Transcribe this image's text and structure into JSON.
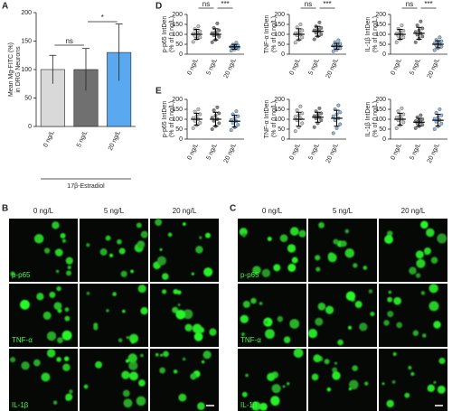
{
  "panel_labels": [
    "A",
    "B",
    "C",
    "D",
    "E"
  ],
  "chart_data": [
    {
      "type": "bar",
      "ylabel": [
        "Mean Mg-FITC (%)",
        "in DRG Neurons"
      ],
      "xlabel": "17β-Estradiol",
      "categories": [
        "0 ng/L",
        "5 ng/L",
        "20 ng/L"
      ],
      "values": [
        100,
        100,
        130
      ],
      "errors": [
        25,
        37,
        50
      ],
      "colors": [
        "#d9d9d9",
        "#707070",
        "#5aa9f0"
      ],
      "ylim": [
        0,
        200
      ],
      "yticks": [
        0,
        50,
        100,
        150,
        200
      ],
      "annotations": [
        "ns",
        "*"
      ]
    },
    {
      "type": "dot",
      "ylabel": [
        "p-p65 IntDen",
        "(% of 0 ng/L)"
      ],
      "categories": [
        "0 ng/L",
        "5 ng/L",
        "20 ng/L"
      ],
      "colors": [
        "#b8b8b8",
        "#666666",
        "#6fa8dc"
      ],
      "ylim": [
        0,
        200
      ],
      "yticks": [
        0,
        50,
        100,
        150,
        200
      ],
      "annotations": [
        "ns",
        "***"
      ],
      "groups": [
        {
          "values": [
            62,
            78,
            85,
            92,
            97,
            103,
            108,
            115,
            126,
            140
          ],
          "mean": 100,
          "sd": 25
        },
        {
          "values": [
            60,
            72,
            88,
            95,
            100,
            106,
            112,
            120,
            132,
            155
          ],
          "mean": 100,
          "sd": 28
        },
        {
          "values": [
            18,
            24,
            28,
            32,
            35,
            38,
            40,
            44,
            48,
            58
          ],
          "mean": 37,
          "sd": 12
        }
      ]
    },
    {
      "type": "dot",
      "ylabel": [
        "TNF-α IntDen",
        "(% of 0 ng/L)"
      ],
      "categories": [
        "0 ng/L",
        "5 ng/L",
        "20 ng/L"
      ],
      "colors": [
        "#b8b8b8",
        "#666666",
        "#6fa8dc"
      ],
      "ylim": [
        0,
        200
      ],
      "yticks": [
        0,
        50,
        100,
        150,
        200
      ],
      "annotations": [
        "ns",
        "***"
      ],
      "groups": [
        {
          "values": [
            58,
            72,
            85,
            95,
            100,
            105,
            112,
            120,
            135,
            150
          ],
          "mean": 100,
          "sd": 28
        },
        {
          "values": [
            75,
            90,
            100,
            108,
            115,
            120,
            125,
            132,
            140,
            160
          ],
          "mean": 115,
          "sd": 25
        },
        {
          "values": [
            15,
            22,
            30,
            35,
            40,
            44,
            48,
            52,
            60,
            70
          ],
          "mean": 40,
          "sd": 15
        }
      ]
    },
    {
      "type": "dot",
      "ylabel": [
        "IL-1β IntDen",
        "(% of 0 ng/L)"
      ],
      "categories": [
        "0 ng/L",
        "5 ng/L",
        "20 ng/L"
      ],
      "colors": [
        "#b8b8b8",
        "#666666",
        "#6fa8dc"
      ],
      "ylim": [
        0,
        200
      ],
      "yticks": [
        0,
        50,
        100,
        150,
        200
      ],
      "annotations": [
        "ns",
        "***"
      ],
      "groups": [
        {
          "values": [
            60,
            75,
            85,
            92,
            98,
            104,
            110,
            118,
            128,
            145
          ],
          "mean": 100,
          "sd": 25
        },
        {
          "values": [
            60,
            78,
            90,
            98,
            105,
            112,
            120,
            130,
            145,
            165
          ],
          "mean": 105,
          "sd": 30
        },
        {
          "values": [
            20,
            30,
            38,
            45,
            50,
            55,
            60,
            65,
            72,
            85
          ],
          "mean": 50,
          "sd": 18
        }
      ]
    },
    {
      "type": "dot",
      "ylabel": [
        "p-p65 IntDen",
        "(% of 0 ng/L)"
      ],
      "categories": [
        "0 ng/L",
        "5 ng/L",
        "20 ng/L"
      ],
      "colors": [
        "#b8b8b8",
        "#666666",
        "#6fa8dc"
      ],
      "ylim": [
        0,
        200
      ],
      "yticks": [
        0,
        50,
        100,
        150,
        200
      ],
      "groups": [
        {
          "values": [
            55,
            70,
            82,
            92,
            100,
            106,
            115,
            125,
            138,
            150
          ],
          "mean": 100,
          "sd": 30
        },
        {
          "values": [
            50,
            65,
            80,
            92,
            100,
            108,
            118,
            130,
            145,
            160
          ],
          "mean": 100,
          "sd": 35
        },
        {
          "values": [
            45,
            60,
            72,
            82,
            90,
            96,
            105,
            115,
            125,
            140
          ],
          "mean": 90,
          "sd": 30
        }
      ]
    },
    {
      "type": "dot",
      "ylabel": [
        "TNF-α IntDen",
        "(% of 0 ng/L)"
      ],
      "categories": [
        "0 ng/L",
        "5 ng/L",
        "20 ng/L"
      ],
      "colors": [
        "#b8b8b8",
        "#666666",
        "#6fa8dc"
      ],
      "ylim": [
        0,
        200
      ],
      "yticks": [
        0,
        50,
        100,
        150,
        200
      ],
      "groups": [
        {
          "values": [
            40,
            60,
            80,
            95,
            105,
            112,
            120,
            130,
            145,
            165
          ],
          "mean": 100,
          "sd": 35
        },
        {
          "values": [
            60,
            80,
            95,
            105,
            110,
            116,
            122,
            130,
            140,
            155
          ],
          "mean": 110,
          "sd": 25
        },
        {
          "values": [
            30,
            55,
            75,
            95,
            105,
            115,
            125,
            135,
            150,
            170
          ],
          "mean": 105,
          "sd": 40
        }
      ]
    },
    {
      "type": "dot",
      "ylabel": [
        "IL-1β IntDen",
        "(% of 0 ng/L)"
      ],
      "categories": [
        "0 ng/L",
        "5 ng/L",
        "20 ng/L"
      ],
      "colors": [
        "#b8b8b8",
        "#666666",
        "#6fa8dc"
      ],
      "ylim": [
        0,
        200
      ],
      "yticks": [
        0,
        50,
        100,
        150,
        200
      ],
      "groups": [
        {
          "values": [
            55,
            70,
            85,
            95,
            102,
            108,
            115,
            125,
            140,
            155
          ],
          "mean": 100,
          "sd": 30
        },
        {
          "values": [
            55,
            65,
            72,
            80,
            85,
            90,
            95,
            100,
            110,
            120
          ],
          "mean": 85,
          "sd": 20
        },
        {
          "values": [
            50,
            65,
            78,
            88,
            95,
            102,
            110,
            120,
            132,
            150
          ],
          "mean": 95,
          "sd": 30
        }
      ]
    }
  ],
  "image_panels": [
    {
      "columns": [
        "0 ng/L",
        "5 ng/L",
        "20 ng/L"
      ],
      "rows": [
        "p-p65",
        "TNF-α",
        "IL-1β"
      ]
    },
    {
      "columns": [
        "0 ng/L",
        "5 ng/L",
        "20 ng/L"
      ],
      "rows": [
        "p-p65",
        "TNF-α",
        "IL-1β"
      ]
    }
  ]
}
